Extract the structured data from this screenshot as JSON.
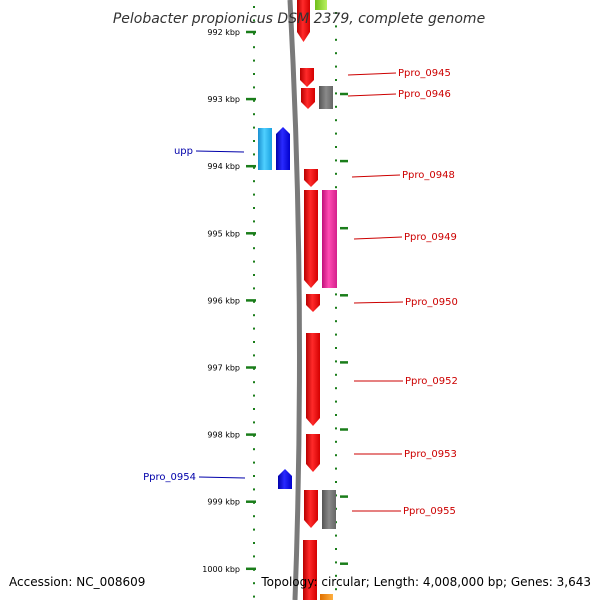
{
  "title": "Pelobacter propionicus DSM 2379, complete genome",
  "footer": {
    "accession": "Accession: NC_008609",
    "summary": "Topology: circular; Length: 4,008,000 bp; Genes: 3,643"
  },
  "colors": {
    "backbone": "#808080",
    "tick": "#1a7d1a",
    "forward_label": "#cc0000",
    "reverse_label": "#0000aa"
  },
  "kbp_ticks": [
    "992 kbp",
    "993 kbp",
    "994 kbp",
    "995 kbp",
    "996 kbp",
    "997 kbp",
    "998 kbp",
    "999 kbp",
    "1000 kbp"
  ],
  "genes": [
    {
      "label": "Ppro_0945",
      "strand": "forward",
      "color": "red"
    },
    {
      "label": "Ppro_0946",
      "strand": "forward",
      "color": "red"
    },
    {
      "label": "Ppro_0948",
      "strand": "forward",
      "color": "red"
    },
    {
      "label": "Ppro_0949",
      "strand": "forward",
      "color": "magenta"
    },
    {
      "label": "Ppro_0950",
      "strand": "forward",
      "color": "red"
    },
    {
      "label": "Ppro_0952",
      "strand": "forward",
      "color": "red"
    },
    {
      "label": "Ppro_0953",
      "strand": "forward",
      "color": "red"
    },
    {
      "label": "Ppro_0955",
      "strand": "forward",
      "color": "red"
    },
    {
      "label": "upp",
      "strand": "reverse",
      "color": "blue"
    },
    {
      "label": "Ppro_0954",
      "strand": "reverse",
      "color": "blue"
    }
  ]
}
